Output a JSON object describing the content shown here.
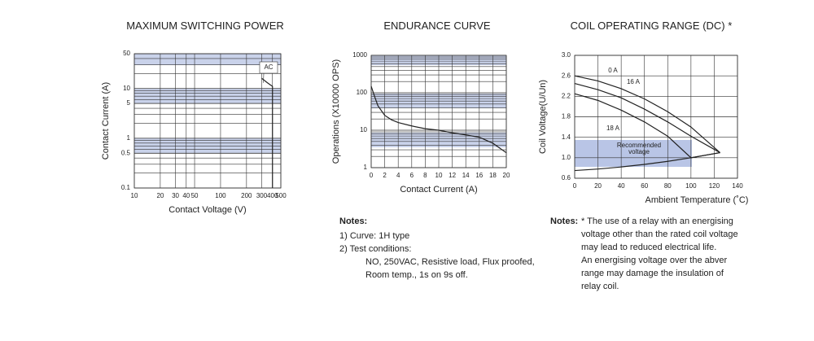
{
  "chart_data": [
    {
      "type": "line",
      "title": "MAXIMUM SWITCHING POWER",
      "x_label": "Contact Voltage (V)",
      "y_label": "Contact Current (A)",
      "xlog": true,
      "ylog": true,
      "xlim": [
        10,
        500
      ],
      "ylim": [
        0.1,
        50
      ],
      "xticks": [
        10,
        20,
        30,
        40,
        50,
        100,
        200,
        300,
        400,
        500
      ],
      "yticks": [
        0.1,
        0.5,
        1,
        5,
        10,
        50
      ],
      "x": [
        300,
        350,
        400,
        400
      ],
      "series": [
        {
          "name": "AC",
          "color": "#222222",
          "values": [
            16,
            13,
            11,
            0.1
          ]
        }
      ],
      "grid": true
    },
    {
      "type": "line",
      "title": "ENDURANCE CURVE",
      "x_label": "Contact Current (A)",
      "y_label": "Operations (X10000 OPS)",
      "xlog": false,
      "ylog": true,
      "xlim": [
        0,
        20
      ],
      "ylim": [
        1,
        1000
      ],
      "xticks": [
        0,
        2,
        4,
        6,
        8,
        10,
        12,
        14,
        16,
        18,
        20
      ],
      "yticks": [
        1,
        10,
        100,
        1000
      ],
      "x": [
        0,
        0.5,
        1,
        2,
        3,
        4,
        6,
        8,
        10,
        12,
        14,
        16,
        18,
        20
      ],
      "series": [
        {
          "color": "#222222",
          "values": [
            150,
            80,
            45,
            25,
            19,
            16,
            13,
            11,
            10,
            8.5,
            7.5,
            6.5,
            4.5,
            2.5
          ]
        }
      ],
      "grid": true,
      "notes": {
        "heading": "Notes:",
        "lines": [
          "1) Curve: 1H type",
          "2) Test conditions:",
          "NO, 250VAC, Resistive load, Flux proofed,",
          "Room temp., 1s on 9s off."
        ]
      }
    },
    {
      "type": "line",
      "title": "COIL OPERATING RANGE (DC) *",
      "x_label": "Ambient Temperature (˚C)",
      "y_label": "Coil Voltage(U/Un)",
      "xlog": false,
      "ylog": false,
      "xlim": [
        0,
        140
      ],
      "ylim": [
        0.6,
        3.0
      ],
      "xticks": [
        0,
        20,
        40,
        60,
        80,
        100,
        120,
        140
      ],
      "yticks": [
        0.6,
        {
          "value": 1.0,
          "label": "1.0"
        },
        1.4,
        1.8,
        2.2,
        2.6,
        {
          "value": 3.0,
          "label": "3.0"
        }
      ],
      "x": [
        0,
        20,
        40,
        60,
        80,
        100,
        125
      ],
      "series": [
        {
          "name": "0 A",
          "color": "#222222",
          "values": [
            2.6,
            2.5,
            2.35,
            2.15,
            1.9,
            1.6,
            1.1
          ]
        },
        {
          "name": "16 A",
          "color": "#222222",
          "values": [
            2.45,
            2.33,
            2.17,
            1.95,
            1.7,
            1.42,
            1.1
          ]
        },
        {
          "name": "18 A",
          "color": "#222222",
          "values": [
            2.25,
            2.12,
            1.93,
            1.7,
            1.42,
            1.0,
            1.1
          ]
        },
        {
          "color": "#222222",
          "values": [
            0.75,
            0.78,
            0.82,
            0.87,
            0.93,
            1.0,
            1.1
          ]
        }
      ],
      "grid": true,
      "region_label": [
        "Recommended",
        "voltage"
      ],
      "notes": {
        "heading": "Notes:",
        "lines": [
          "* The use of a relay with an energising",
          "voltage other than the rated coil voltage",
          "may lead to reduced electrical life.",
          "An energising voltage over the abver",
          "range may damage the insulation of",
          "relay coil."
        ]
      }
    }
  ]
}
